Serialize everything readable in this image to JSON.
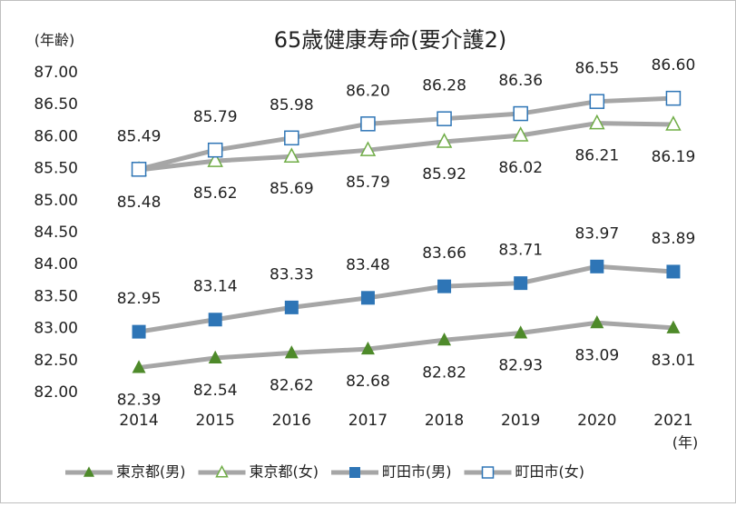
{
  "chart_data": {
    "type": "line",
    "title": "65歳健康寿命(要介護2)",
    "y_axis_label": "(年齢)",
    "x_axis_label": "(年)",
    "categories": [
      "2014",
      "2015",
      "2016",
      "2017",
      "2018",
      "2019",
      "2020",
      "2021"
    ],
    "line_color": "#a6a6a6",
    "series": [
      {
        "name": "東京都(男)",
        "color": "#4e8a2a",
        "marker": "triangle",
        "filled": true,
        "values": [
          82.39,
          82.54,
          82.62,
          82.68,
          82.82,
          82.93,
          83.09,
          83.01
        ],
        "value_labels": [
          "82.39",
          "82.54",
          "82.62",
          "82.68",
          "82.82",
          "82.93",
          "83.09",
          "83.01"
        ]
      },
      {
        "name": "東京都(女)",
        "color": "#70ad47",
        "marker": "triangle",
        "filled": false,
        "values": [
          85.48,
          85.62,
          85.69,
          85.79,
          85.92,
          86.02,
          86.21,
          86.19
        ],
        "value_labels": [
          "85.48",
          "85.62",
          "85.69",
          "85.79",
          "85.92",
          "86.02",
          "86.21",
          "86.19"
        ]
      },
      {
        "name": "町田市(男)",
        "color": "#2e75b6",
        "marker": "square",
        "filled": true,
        "values": [
          82.95,
          83.14,
          83.33,
          83.48,
          83.66,
          83.71,
          83.97,
          83.89
        ],
        "value_labels": [
          "82.95",
          "83.14",
          "83.33",
          "83.48",
          "83.66",
          "83.71",
          "83.97",
          "83.89"
        ]
      },
      {
        "name": "町田市(女)",
        "color": "#2e75b6",
        "marker": "square",
        "filled": false,
        "values": [
          85.49,
          85.79,
          85.98,
          86.2,
          86.28,
          86.36,
          86.55,
          86.6
        ],
        "value_labels": [
          "85.49",
          "85.79",
          "85.98",
          "86.20",
          "86.28",
          "86.36",
          "86.55",
          "86.60"
        ]
      }
    ],
    "ylim": [
      82,
      87
    ],
    "yticks": [
      {
        "value": 82,
        "label": "82.00"
      },
      {
        "value": 82.5,
        "label": "82.50"
      },
      {
        "value": 83,
        "label": "83.00"
      },
      {
        "value": 83.5,
        "label": "83.50"
      },
      {
        "value": 84,
        "label": "84.00"
      },
      {
        "value": 84.5,
        "label": "84.50"
      },
      {
        "value": 85,
        "label": "85.00"
      },
      {
        "value": 85.5,
        "label": "85.50"
      },
      {
        "value": 86,
        "label": "86.00"
      },
      {
        "value": 86.5,
        "label": "86.50"
      },
      {
        "value": 87,
        "label": "87.00"
      }
    ],
    "grid": false,
    "legend": "bottom"
  }
}
